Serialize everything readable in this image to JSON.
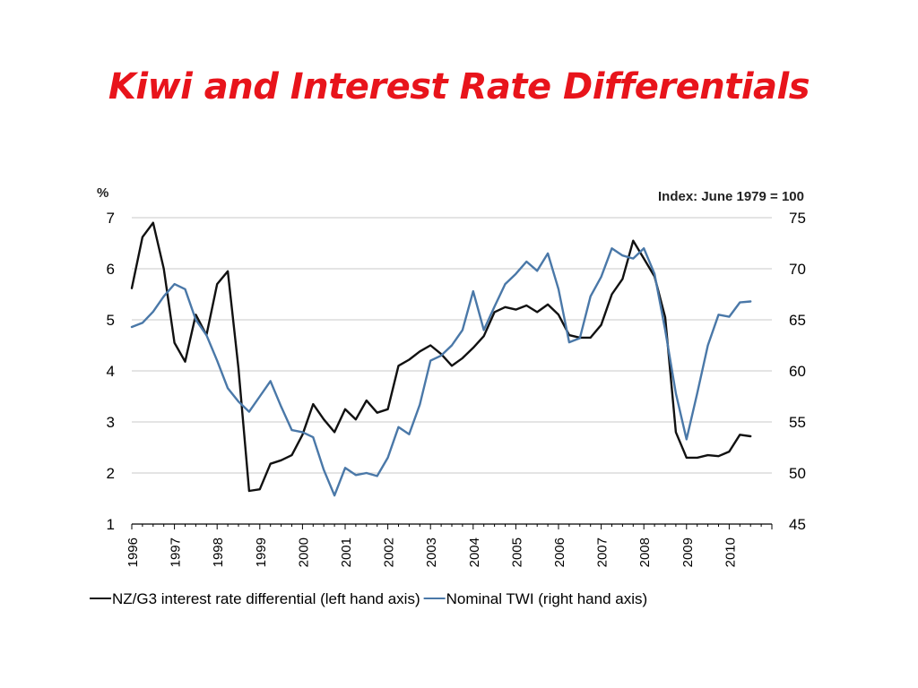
{
  "slide": {
    "title": "Kiwi and Interest Rate Differentials",
    "title_color": "#e8141b"
  },
  "chart_data": {
    "type": "line",
    "left_axis": {
      "unit": "%",
      "range": [
        1,
        7
      ],
      "ticks": [
        "1",
        "2",
        "3",
        "4",
        "5",
        "6",
        "7"
      ]
    },
    "right_axis": {
      "unit": "Index: June 1979 = 100",
      "range": [
        45,
        75
      ],
      "ticks": [
        "45",
        "50",
        "55",
        "60",
        "65",
        "70",
        "75"
      ]
    },
    "x_axis": {
      "range": [
        1996,
        2011
      ],
      "ticks": [
        "1996",
        "1997",
        "1998",
        "1999",
        "2000",
        "2001",
        "2002",
        "2003",
        "2004",
        "2005",
        "2006",
        "2007",
        "2008",
        "2009",
        "2010"
      ]
    },
    "grid": true,
    "legend_position": "bottom",
    "series": [
      {
        "name": "NZ/G3 interest rate differential (left hand axis)",
        "axis": "left",
        "color": "#111111",
        "x": [
          1996.0,
          1996.25,
          1996.5,
          1996.75,
          1997.0,
          1997.25,
          1997.5,
          1997.75,
          1998.0,
          1998.25,
          1998.5,
          1998.75,
          1999.0,
          1999.25,
          1999.5,
          1999.75,
          2000.0,
          2000.25,
          2000.5,
          2000.75,
          2001.0,
          2001.25,
          2001.5,
          2001.75,
          2002.0,
          2002.25,
          2002.5,
          2002.75,
          2003.0,
          2003.25,
          2003.5,
          2003.75,
          2004.0,
          2004.25,
          2004.5,
          2004.75,
          2005.0,
          2005.25,
          2005.5,
          2005.75,
          2006.0,
          2006.25,
          2006.5,
          2006.75,
          2007.0,
          2007.25,
          2007.5,
          2007.75,
          2008.0,
          2008.25,
          2008.5,
          2008.75,
          2009.0,
          2009.25,
          2009.5,
          2009.75,
          2010.0,
          2010.25,
          2010.5,
          2010.75
        ],
        "values": [
          5.62,
          6.62,
          6.9,
          6.0,
          4.55,
          4.18,
          5.1,
          4.7,
          5.7,
          5.95,
          4.05,
          1.65,
          1.68,
          2.18,
          2.25,
          2.35,
          2.75,
          3.35,
          3.05,
          2.8,
          3.25,
          3.05,
          3.42,
          3.18,
          3.25,
          4.1,
          4.22,
          4.38,
          4.5,
          4.33,
          4.1,
          4.25,
          4.45,
          4.68,
          5.15,
          5.25,
          5.2,
          5.28,
          5.15,
          5.3,
          5.1,
          4.7,
          4.65,
          4.65,
          4.9,
          5.5,
          5.8,
          6.55,
          6.2,
          5.85,
          5.05,
          2.8,
          2.3,
          2.3,
          2.35,
          2.33,
          2.42,
          2.75,
          2.72,
          null
        ]
      },
      {
        "name": "Nominal TWI (right hand axis)",
        "axis": "right",
        "color": "#4a78a8",
        "x": [
          1996.0,
          1996.25,
          1996.5,
          1996.75,
          1997.0,
          1997.25,
          1997.5,
          1997.75,
          1998.0,
          1998.25,
          1998.5,
          1998.75,
          1999.0,
          1999.25,
          1999.5,
          1999.75,
          2000.0,
          2000.25,
          2000.5,
          2000.75,
          2001.0,
          2001.25,
          2001.5,
          2001.75,
          2002.0,
          2002.25,
          2002.5,
          2002.75,
          2003.0,
          2003.25,
          2003.5,
          2003.75,
          2004.0,
          2004.25,
          2004.5,
          2004.75,
          2005.0,
          2005.25,
          2005.5,
          2005.75,
          2006.0,
          2006.25,
          2006.5,
          2006.75,
          2007.0,
          2007.25,
          2007.5,
          2007.75,
          2008.0,
          2008.25,
          2008.5,
          2008.75,
          2009.0,
          2009.25,
          2009.5,
          2009.75,
          2010.0,
          2010.25,
          2010.5,
          2010.75
        ],
        "values": [
          64.3,
          64.7,
          65.8,
          67.3,
          68.5,
          68.0,
          65.0,
          63.5,
          61.0,
          58.3,
          57.0,
          56.0,
          57.5,
          59.0,
          56.5,
          54.2,
          54.0,
          53.5,
          50.3,
          47.8,
          50.5,
          49.8,
          50.0,
          49.7,
          51.5,
          54.5,
          53.8,
          56.7,
          61.0,
          61.5,
          62.5,
          64.0,
          67.8,
          64.0,
          66.3,
          68.5,
          69.5,
          70.7,
          69.8,
          71.5,
          68.0,
          62.8,
          63.2,
          67.3,
          69.2,
          72.0,
          71.3,
          71.0,
          72.0,
          69.5,
          64.0,
          57.8,
          53.3,
          57.8,
          62.5,
          65.5,
          65.3,
          66.7,
          66.8,
          null
        ]
      }
    ]
  }
}
